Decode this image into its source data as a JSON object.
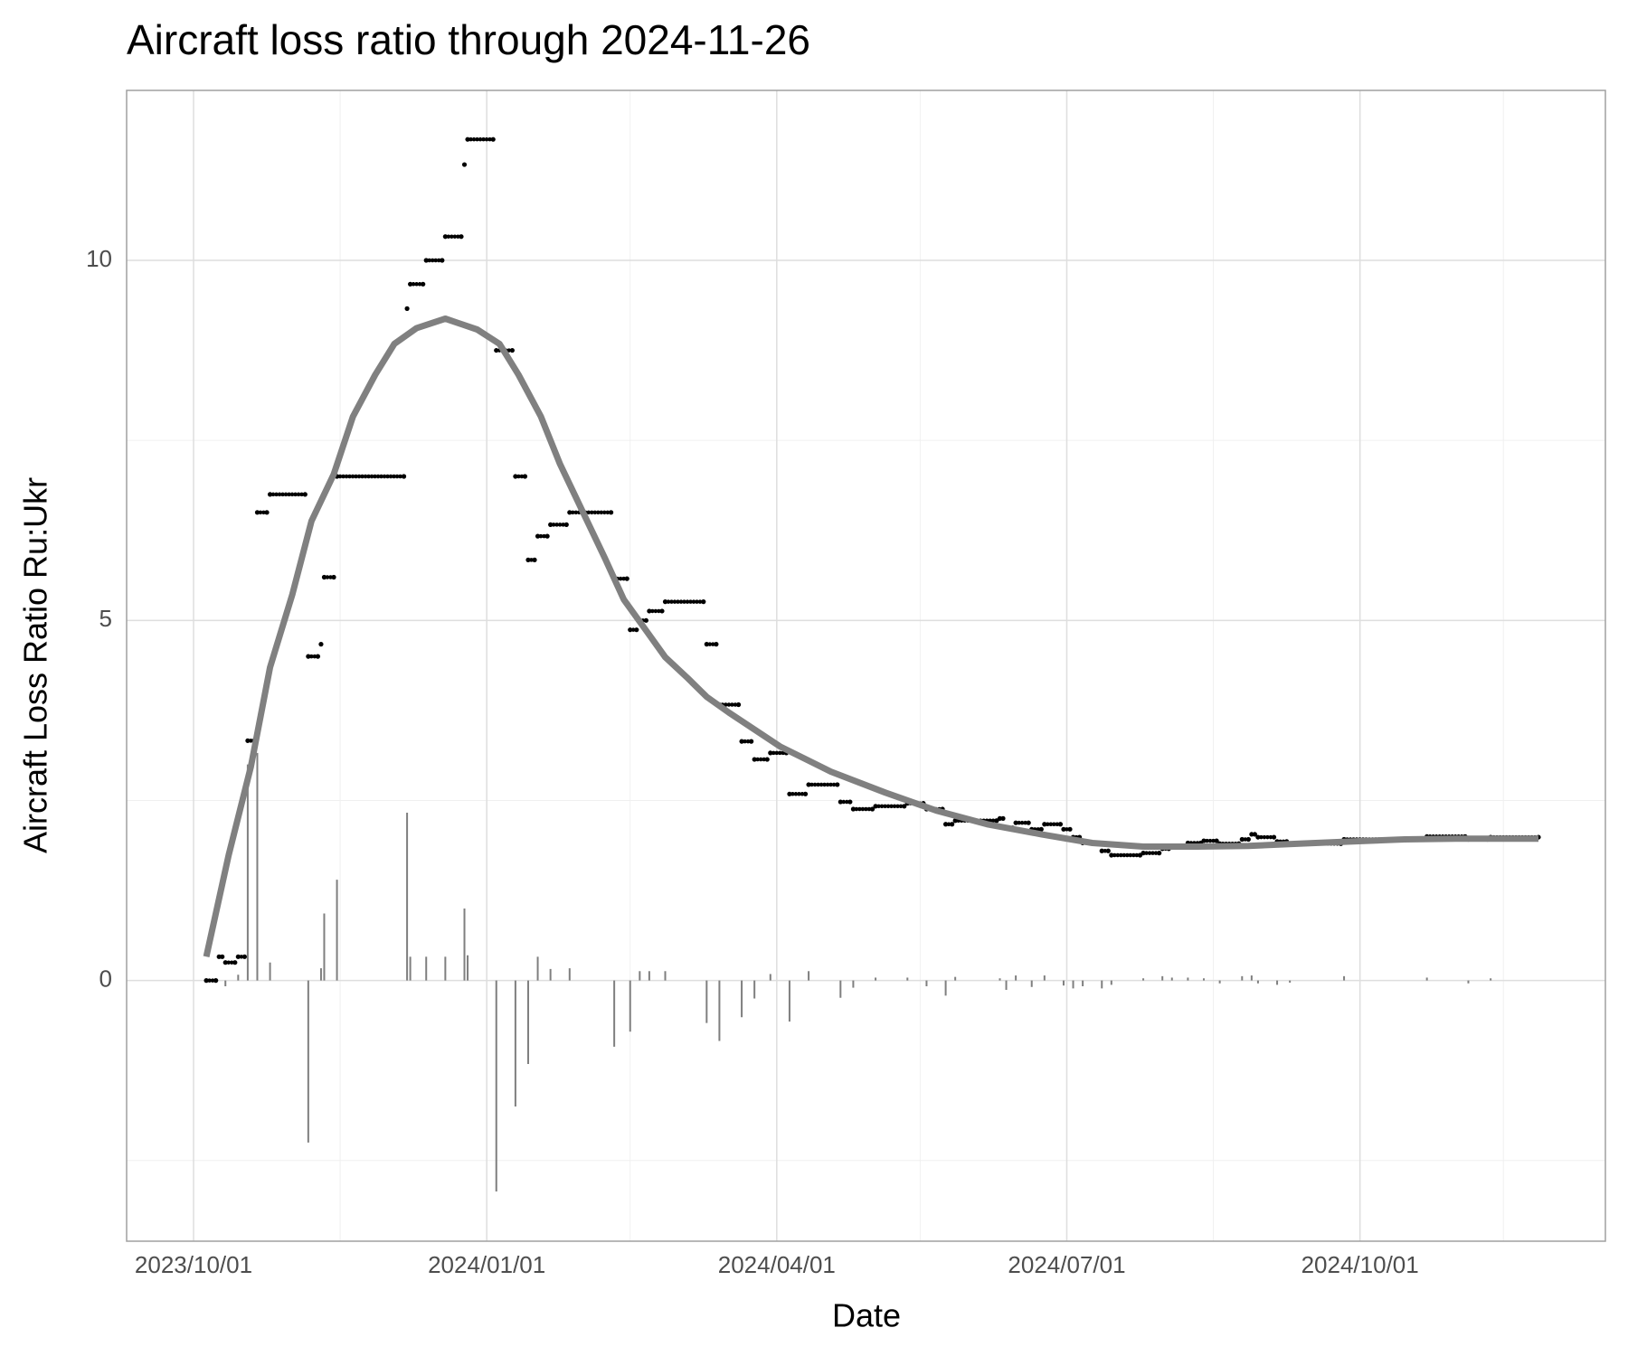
{
  "chart_data": {
    "type": "combo",
    "title": "Aircraft loss ratio through 2024-11-26",
    "x_label": "Date",
    "y_label": "Aircraft Loss Ratio Ru:Ukr",
    "xlim": [
      "2023/09/10",
      "2024/12/17"
    ],
    "xticks": [
      "2023/10/01",
      "2024/01/01",
      "2024/04/01",
      "2024/07/01",
      "2024/10/01"
    ],
    "minor_xticks": [
      "2023/11/16",
      "2024/02/15",
      "2024/05/16",
      "2024/08/16",
      "2024/11/15"
    ],
    "ylim": [
      -3.62,
      12.36
    ],
    "yticks": [
      0,
      5,
      10
    ],
    "minor_yticks": [
      -2.5,
      2.5,
      7.5
    ],
    "grid": true,
    "series": [
      {
        "type": "bar",
        "color": "#7f7f7f",
        "x": [
          "2023/10/11",
          "2023/10/15",
          "2023/10/18",
          "2023/10/21",
          "2023/10/25",
          "2023/11/06",
          "2023/11/10",
          "2023/11/11",
          "2023/11/15",
          "2023/12/07",
          "2023/12/08",
          "2023/12/13",
          "2023/12/19",
          "2023/12/25",
          "2023/12/26",
          "2024/01/04",
          "2024/01/10",
          "2024/01/14",
          "2024/01/17",
          "2024/01/21",
          "2024/01/27",
          "2024/02/10",
          "2024/02/15",
          "2024/02/18",
          "2024/02/21",
          "2024/02/26",
          "2024/03/10",
          "2024/03/14",
          "2024/03/21",
          "2024/03/25",
          "2024/03/30",
          "2024/04/05",
          "2024/04/11",
          "2024/04/21",
          "2024/04/25",
          "2024/05/02",
          "2024/05/12",
          "2024/05/18",
          "2024/05/24",
          "2024/05/27",
          "2024/06/10",
          "2024/06/12",
          "2024/06/15",
          "2024/06/20",
          "2024/06/24",
          "2024/06/30",
          "2024/07/03",
          "2024/07/06",
          "2024/07/12",
          "2024/07/15",
          "2024/07/25",
          "2024/07/31",
          "2024/08/03",
          "2024/08/08",
          "2024/08/13",
          "2024/08/18",
          "2024/08/25",
          "2024/08/28",
          "2024/08/30",
          "2024/09/05",
          "2024/09/09",
          "2024/09/26",
          "2024/10/22",
          "2024/11/04",
          "2024/11/11"
        ],
        "values": [
          -0.08,
          0.08,
          3.0,
          3.16,
          0.25,
          -2.25,
          0.17,
          0.93,
          1.4,
          2.33,
          0.33,
          0.33,
          0.33,
          1.0,
          0.35,
          -2.93,
          -1.75,
          -1.16,
          0.33,
          0.16,
          0.17,
          -0.92,
          -0.71,
          0.13,
          0.13,
          0.13,
          -0.59,
          -0.84,
          -0.51,
          -0.25,
          0.09,
          -0.57,
          0.13,
          -0.24,
          -0.1,
          0.04,
          0.04,
          -0.08,
          -0.21,
          0.05,
          0.03,
          -0.13,
          0.07,
          -0.09,
          0.07,
          -0.07,
          -0.11,
          -0.08,
          -0.11,
          -0.06,
          0.03,
          0.06,
          0.04,
          0.04,
          0.03,
          -0.04,
          0.06,
          0.07,
          -0.04,
          -0.06,
          -0.03,
          0.06,
          0.04,
          -0.04,
          0.03
        ]
      },
      {
        "type": "scatter",
        "color": "#000000",
        "x": [
          "2023/10/05",
          "2023/10/08",
          "2023/10/09",
          "2023/10/10",
          "2023/10/11",
          "2023/10/14",
          "2023/10/15",
          "2023/10/17",
          "2023/10/18",
          "2023/10/20",
          "2023/10/21",
          "2023/10/24",
          "2023/10/25",
          "2023/11/05",
          "2023/11/06",
          "2023/11/09",
          "2023/11/10",
          "2023/11/11",
          "2023/11/14",
          "2023/11/15",
          "2023/12/06",
          "2023/12/07",
          "2023/12/08",
          "2023/12/12",
          "2023/12/13",
          "2023/12/18",
          "2023/12/19",
          "2023/12/24",
          "2023/12/25",
          "2023/12/26",
          "2024/01/03",
          "2024/01/04",
          "2024/01/09",
          "2024/01/10",
          "2024/01/13",
          "2024/01/14",
          "2024/01/16",
          "2024/01/17",
          "2024/01/20",
          "2024/01/21",
          "2024/01/26",
          "2024/01/27",
          "2024/02/09",
          "2024/02/10",
          "2024/02/14",
          "2024/02/15",
          "2024/02/17",
          "2024/02/18",
          "2024/02/20",
          "2024/02/21",
          "2024/02/25",
          "2024/02/26",
          "2024/03/09",
          "2024/03/10",
          "2024/03/13",
          "2024/03/14",
          "2024/03/20",
          "2024/03/21",
          "2024/03/24",
          "2024/03/25",
          "2024/03/29",
          "2024/03/30",
          "2024/04/04",
          "2024/04/05",
          "2024/04/10",
          "2024/04/11",
          "2024/04/20",
          "2024/04/21",
          "2024/04/24",
          "2024/04/25",
          "2024/05/01",
          "2024/05/02",
          "2024/05/11",
          "2024/05/12",
          "2024/05/17",
          "2024/05/18",
          "2024/05/23",
          "2024/05/24",
          "2024/05/26",
          "2024/05/27",
          "2024/06/09",
          "2024/06/10",
          "2024/06/11",
          "2024/06/12",
          "2024/06/14",
          "2024/06/15",
          "2024/06/19",
          "2024/06/20",
          "2024/06/23",
          "2024/06/24",
          "2024/06/29",
          "2024/06/30",
          "2024/07/02",
          "2024/07/03",
          "2024/07/05",
          "2024/07/06",
          "2024/07/11",
          "2024/07/12",
          "2024/07/14",
          "2024/07/15",
          "2024/07/24",
          "2024/07/25",
          "2024/07/30",
          "2024/07/31",
          "2024/08/02",
          "2024/08/03",
          "2024/08/07",
          "2024/08/08",
          "2024/08/12",
          "2024/08/13",
          "2024/08/17",
          "2024/08/18",
          "2024/08/24",
          "2024/08/25",
          "2024/08/27",
          "2024/08/28",
          "2024/08/29",
          "2024/08/30",
          "2024/09/04",
          "2024/09/05",
          "2024/09/08",
          "2024/09/09",
          "2024/09/25",
          "2024/09/26",
          "2024/10/21",
          "2024/10/22",
          "2024/11/03",
          "2024/11/04",
          "2024/11/10",
          "2024/11/11",
          "2024/11/26"
        ],
        "values": [
          0,
          0,
          0.33,
          0.33,
          0.25,
          0.25,
          0.33,
          0.33,
          3.33,
          3.33,
          6.5,
          6.5,
          6.75,
          6.75,
          4.5,
          4.5,
          4.67,
          5.6,
          5.6,
          7.0,
          7.0,
          9.33,
          9.67,
          9.67,
          10,
          10,
          10.33,
          10.33,
          11.33,
          11.68,
          11.68,
          8.75,
          8.75,
          7.0,
          7.0,
          5.84,
          5.84,
          6.17,
          6.17,
          6.33,
          6.33,
          6.5,
          6.5,
          5.58,
          5.58,
          4.87,
          4.87,
          5.0,
          5.0,
          5.13,
          5.13,
          5.26,
          5.26,
          4.67,
          4.67,
          3.83,
          3.83,
          3.32,
          3.32,
          3.07,
          3.07,
          3.16,
          3.16,
          2.59,
          2.59,
          2.72,
          2.72,
          2.48,
          2.48,
          2.38,
          2.38,
          2.42,
          2.42,
          2.46,
          2.46,
          2.38,
          2.38,
          2.17,
          2.17,
          2.22,
          2.22,
          2.25,
          2.25,
          2.12,
          2.12,
          2.19,
          2.19,
          2.1,
          2.1,
          2.17,
          2.17,
          2.1,
          2.1,
          1.99,
          1.99,
          1.91,
          1.91,
          1.8,
          1.8,
          1.74,
          1.74,
          1.77,
          1.77,
          1.83,
          1.83,
          1.87,
          1.87,
          1.91,
          1.91,
          1.94,
          1.94,
          1.9,
          1.9,
          1.96,
          1.96,
          2.03,
          2.03,
          1.99,
          1.99,
          1.93,
          1.93,
          1.9,
          1.9,
          1.96,
          1.96,
          2.0,
          2.0,
          1.96,
          1.96,
          1.99,
          1.99
        ]
      },
      {
        "type": "line",
        "color": "#808080",
        "x": [
          "2023/10/05",
          "2023/10/12",
          "2023/10/19",
          "2023/10/25",
          "2023/11/01",
          "2023/11/07",
          "2023/11/14",
          "2023/11/20",
          "2023/11/27",
          "2023/12/03",
          "2023/12/10",
          "2023/12/19",
          "2023/12/29",
          "2024/01/05",
          "2024/01/11",
          "2024/01/18",
          "2024/01/24",
          "2024/01/31",
          "2024/02/07",
          "2024/02/13",
          "2024/02/20",
          "2024/02/26",
          "2024/03/04",
          "2024/03/10",
          "2024/03/17",
          "2024/04/02",
          "2024/04/18",
          "2024/05/05",
          "2024/05/21",
          "2024/06/06",
          "2024/06/23",
          "2024/07/09",
          "2024/07/25",
          "2024/08/11",
          "2024/08/27",
          "2024/09/12",
          "2024/09/28",
          "2024/10/15",
          "2024/10/31",
          "2024/11/26"
        ],
        "values": [
          0.33,
          1.74,
          2.97,
          4.35,
          5.36,
          6.38,
          7.03,
          7.83,
          8.41,
          8.84,
          9.06,
          9.19,
          9.04,
          8.84,
          8.41,
          7.83,
          7.17,
          6.52,
          5.87,
          5.29,
          4.86,
          4.49,
          4.2,
          3.94,
          3.72,
          3.25,
          2.9,
          2.61,
          2.36,
          2.17,
          2.03,
          1.91,
          1.86,
          1.86,
          1.87,
          1.9,
          1.93,
          1.96,
          1.97,
          1.97
        ]
      }
    ]
  }
}
